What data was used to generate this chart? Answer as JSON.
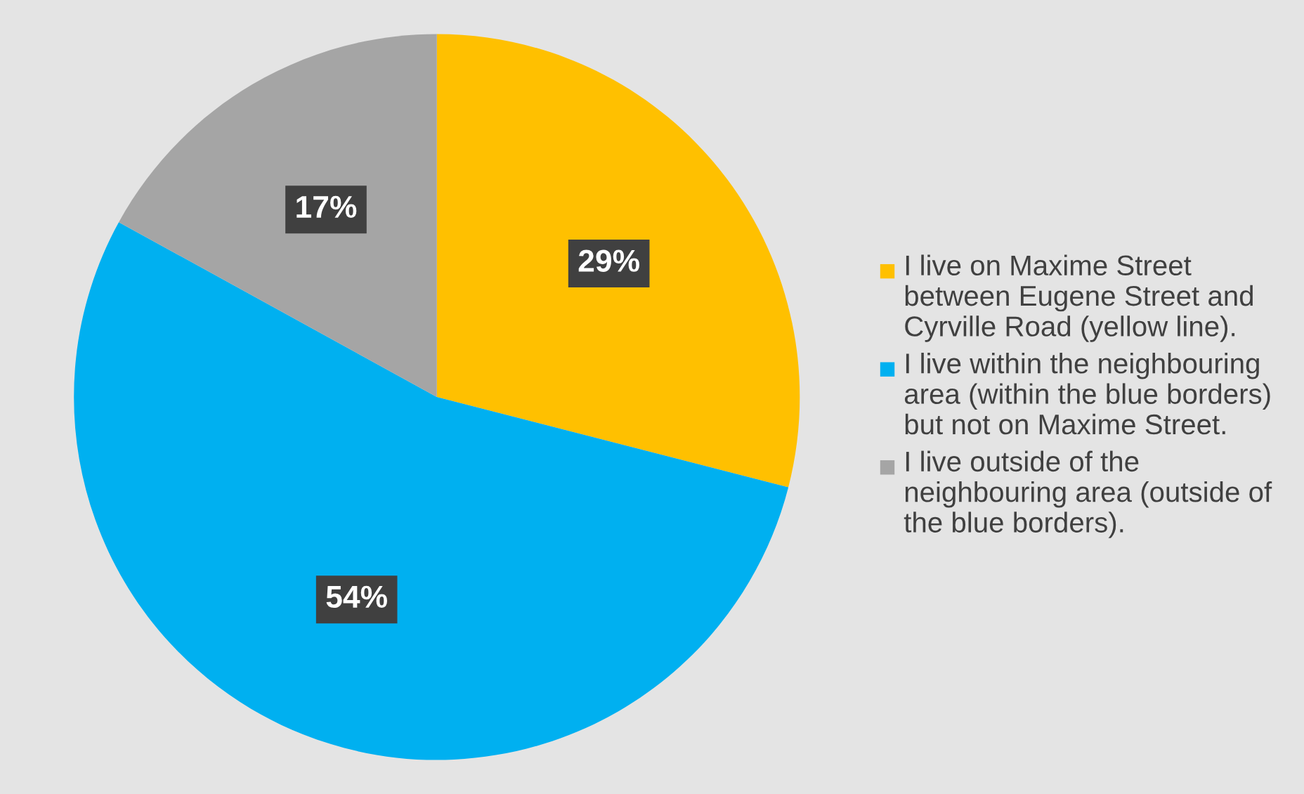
{
  "chart_data": {
    "type": "pie",
    "categories": [
      "I live on Maxime Street between Eugene Street and Cyrville Road (yellow line).",
      "I live within the neighbouring area (within the blue borders) but not on Maxime Street.",
      "I live outside of the neighbouring area (outside of the blue borders)."
    ],
    "values": [
      29,
      54,
      17
    ],
    "colors": [
      "#ffc000",
      "#00b0f0",
      "#a5a5a5"
    ],
    "value_labels": [
      "29%",
      "54%",
      "17%"
    ],
    "legend": "right"
  }
}
